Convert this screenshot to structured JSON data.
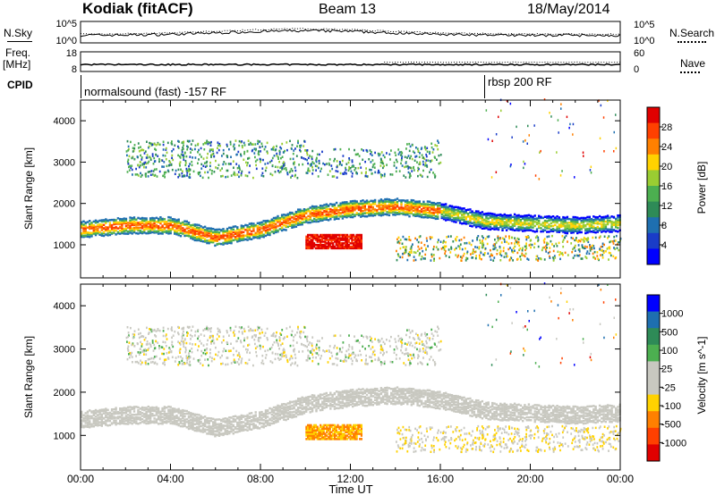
{
  "header": {
    "site": "Kodiak (fitACF)",
    "beam": "Beam 13",
    "date": "18/May/2014"
  },
  "side_labels": {
    "nsky": "N.Sky",
    "nsearch": "N.Search",
    "freq_line1": "Freq.",
    "freq_line2": "[MHz]",
    "nave": "Nave",
    "cpid": "CPID"
  },
  "noise_panel": {
    "left_ticks": [
      "10^5",
      "10^0"
    ],
    "right_ticks": [
      "10^5",
      "10^0"
    ]
  },
  "freq_panel": {
    "left_ticks": [
      "18",
      "8"
    ],
    "right_ticks": [
      "60",
      "0"
    ]
  },
  "cpid_panel": {
    "modes": [
      {
        "label": "normalsound (fast) -157 RF",
        "start_hour": 0
      },
      {
        "label": "rbsp 200 RF",
        "start_hour": 18
      }
    ]
  },
  "chart_data": [
    {
      "type": "heatmap",
      "name": "power",
      "xlabel": "Time UT",
      "ylabel": "Slant Range [km]",
      "xlim_hours": [
        0,
        24
      ],
      "ylim_km": [
        200,
        4500
      ],
      "y_ticks": [
        1000,
        2000,
        3000,
        4000
      ],
      "colorbar": {
        "label": "Power [dB]",
        "ticks": [
          28,
          24,
          20,
          16,
          12,
          8,
          4
        ],
        "colors": [
          "#e00000",
          "#ff4000",
          "#ff8000",
          "#ffd200",
          "#9acd32",
          "#4caf50",
          "#2e8b57",
          "#1e6fb0",
          "#1a3cc8",
          "#0000ff"
        ]
      },
      "bands": [
        {
          "from_hour": 0.0,
          "to_hour": 16.0,
          "center_km": [
            1350,
            1500,
            1300,
            1100,
            1300,
            1600,
            1800,
            1900
          ],
          "level": 20
        },
        {
          "from_hour": 16.0,
          "to_hour": 24.0,
          "center_km": [
            1900,
            1800,
            1500,
            1450,
            1500
          ],
          "level": 18
        },
        {
          "from_hour": 10.0,
          "to_hour": 12.5,
          "center_km": [
            1050
          ],
          "level": 28
        }
      ]
    },
    {
      "type": "heatmap",
      "name": "velocity",
      "xlabel": "Time UT",
      "ylabel": "Slant Range [km]",
      "xlim_hours": [
        0,
        24
      ],
      "ylim_km": [
        200,
        4500
      ],
      "y_ticks": [
        1000,
        2000,
        3000,
        4000
      ],
      "x_ticks": [
        "00:00",
        "04:00",
        "08:00",
        "12:00",
        "16:00",
        "20:00",
        "00:00"
      ],
      "colorbar": {
        "label": "Velocity [m s^-1]",
        "ticks": [
          1000,
          500,
          100,
          25,
          -25,
          -100,
          -500,
          -1000
        ],
        "colors": [
          "#0000ff",
          "#1e6fb0",
          "#2e8b57",
          "#4caf50",
          "#c8c8c0",
          "#c8c8c0",
          "#ffd200",
          "#ff8000",
          "#ff4000",
          "#e00000"
        ]
      }
    }
  ]
}
